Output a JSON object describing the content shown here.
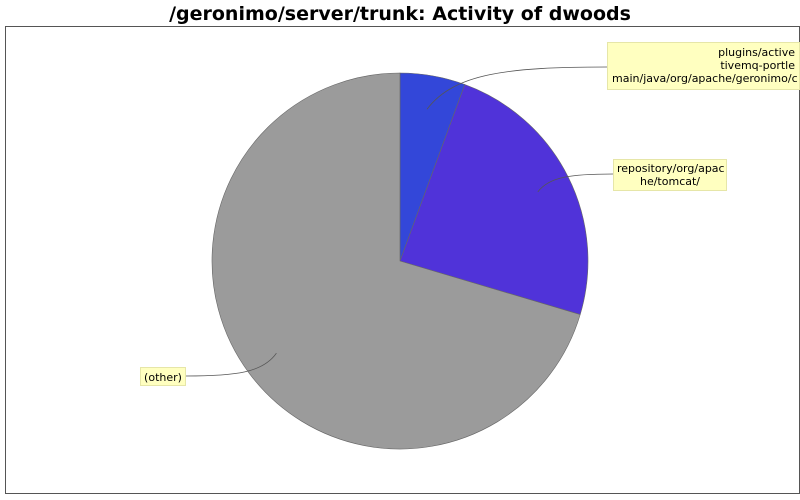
{
  "chart_data": {
    "type": "pie",
    "title": "/geronimo/server/trunk: Activity of dwoods",
    "slices": [
      {
        "label_lines": [
          "plugins/active",
          "tivemq-portle",
          "main/java/org/apache/geronimo/c"
        ],
        "value": 5.6,
        "color": "#3347d9"
      },
      {
        "label_lines": [
          "repository/org/apac",
          "he/tomcat/"
        ],
        "value": 24.0,
        "color": "#5033d9"
      },
      {
        "label_lines": [
          "(other)"
        ],
        "value": 70.4,
        "color": "#9b9b9b"
      }
    ],
    "start_angle": "12 o'clock",
    "direction": "clockwise",
    "legend": "none"
  }
}
